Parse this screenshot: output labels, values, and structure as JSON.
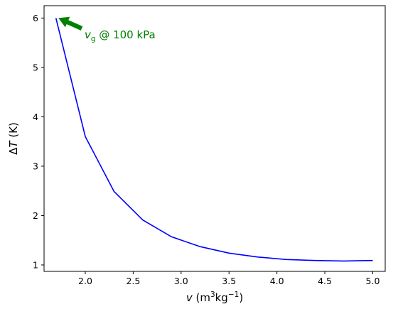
{
  "chart_data": {
    "type": "line",
    "title": "",
    "xlim": [
      1.57,
      5.13
    ],
    "ylim": [
      0.87,
      6.25
    ],
    "x_ticks": [
      2.0,
      2.5,
      3.0,
      3.5,
      4.0,
      4.5,
      5.0
    ],
    "x_tick_labels": [
      "2.0",
      "2.5",
      "3.0",
      "3.5",
      "4.0",
      "4.5",
      "5.0"
    ],
    "y_ticks": [
      1,
      2,
      3,
      4,
      5,
      6
    ],
    "y_tick_labels": [
      "1",
      "2",
      "3",
      "4",
      "5",
      "6"
    ],
    "xlabel": {
      "sym": "v",
      "pre": " (m",
      "sup1": "3",
      "mid": "kg",
      "sup2": "−1",
      "post": ")"
    },
    "ylabel": {
      "delta": "Δ",
      "sym": "T",
      "post": " (K)"
    },
    "grid": false,
    "series": [
      {
        "color": "#0000ff",
        "x": [
          1.694,
          2.0,
          2.3,
          2.6,
          2.9,
          3.2,
          3.5,
          3.8,
          4.1,
          4.4,
          4.7,
          5.0
        ],
        "y": [
          6.0,
          3.6,
          2.49,
          1.91,
          1.57,
          1.37,
          1.24,
          1.16,
          1.11,
          1.09,
          1.08,
          1.09
        ]
      }
    ],
    "annotation": {
      "sym": "v",
      "sub": "g",
      "rest": " @ 100 kPa",
      "color": "#008000",
      "arrow_to": [
        1.72,
        6.0
      ]
    }
  }
}
